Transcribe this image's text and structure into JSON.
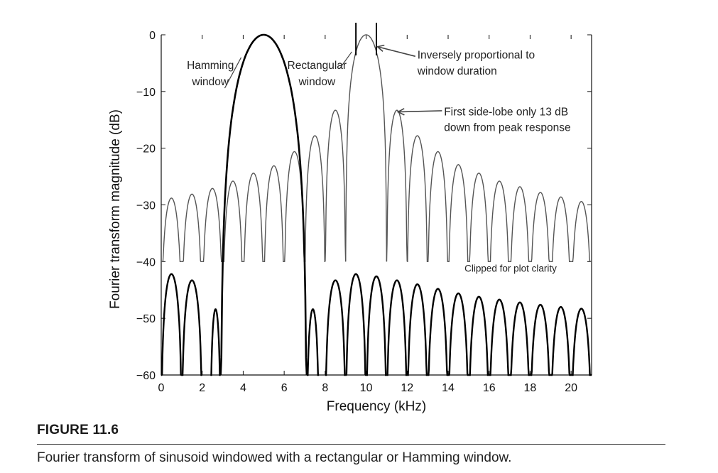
{
  "chart_data": {
    "type": "line",
    "title": "",
    "xlabel": "Frequency (kHz)",
    "ylabel": "Fourier transform magnitude (dB)",
    "xlim": [
      0,
      21
    ],
    "ylim": [
      -60,
      0
    ],
    "xticks": [
      "0",
      "2",
      "4",
      "6",
      "8",
      "10",
      "12",
      "14",
      "16",
      "18",
      "20"
    ],
    "yticks": [
      "0",
      "−10",
      "−20",
      "−30",
      "−40",
      "−50",
      "−60"
    ],
    "grid": false,
    "series": [
      {
        "style": "thick black line",
        "main_lobe": {
          "center_khz": 5,
          "peak_db": 0,
          "null_left_khz": 2.9,
          "null_right_khz": 7.1
        },
        "sidelobes_left": [
          {
            "center_khz": 0.5,
            "peak_db": -42.2
          },
          {
            "center_khz": 1.5,
            "peak_db": -43.3
          },
          {
            "center_khz": 2.65,
            "peak_db": -48.4
          }
        ],
        "sidelobes_right": [
          {
            "center_khz": 7.4,
            "peak_db": -48.4
          },
          {
            "center_khz": 8.5,
            "peak_db": -43.3
          },
          {
            "center_khz": 9.5,
            "peak_db": -42.2
          },
          {
            "center_khz": 10.5,
            "peak_db": -42.6
          },
          {
            "center_khz": 11.5,
            "peak_db": -43.3
          },
          {
            "center_khz": 12.5,
            "peak_db": -44.0
          },
          {
            "center_khz": 13.5,
            "peak_db": -44.8
          },
          {
            "center_khz": 14.5,
            "peak_db": -45.6
          },
          {
            "center_khz": 15.5,
            "peak_db": -46.2
          },
          {
            "center_khz": 16.5,
            "peak_db": -46.7
          },
          {
            "center_khz": 17.5,
            "peak_db": -47.2
          },
          {
            "center_khz": 18.5,
            "peak_db": -47.6
          },
          {
            "center_khz": 19.5,
            "peak_db": -48.0
          },
          {
            "center_khz": 20.5,
            "peak_db": -48.3
          }
        ]
      },
      {
        "style": "thin gray line",
        "clip_db": -40,
        "main_lobe": {
          "center_khz": 10,
          "peak_db": 0,
          "null_left_khz": 9,
          "null_right_khz": 11
        },
        "sidelobes": [
          {
            "center_khz": 0.5,
            "peak_db": -28.8
          },
          {
            "center_khz": 1.5,
            "peak_db": -28.1
          },
          {
            "center_khz": 2.5,
            "peak_db": -27.1
          },
          {
            "center_khz": 3.5,
            "peak_db": -25.8
          },
          {
            "center_khz": 4.5,
            "peak_db": -24.4
          },
          {
            "center_khz": 5.5,
            "peak_db": -23.1
          },
          {
            "center_khz": 6.5,
            "peak_db": -20.6
          },
          {
            "center_khz": 7.5,
            "peak_db": -17.8
          },
          {
            "center_khz": 8.5,
            "peak_db": -13.3
          },
          {
            "center_khz": 11.5,
            "peak_db": -13.3
          },
          {
            "center_khz": 12.5,
            "peak_db": -17.8
          },
          {
            "center_khz": 13.5,
            "peak_db": -20.6
          },
          {
            "center_khz": 14.5,
            "peak_db": -22.9
          },
          {
            "center_khz": 15.5,
            "peak_db": -24.4
          },
          {
            "center_khz": 16.5,
            "peak_db": -25.8
          },
          {
            "center_khz": 17.5,
            "peak_db": -26.8
          },
          {
            "center_khz": 18.5,
            "peak_db": -27.8
          },
          {
            "center_khz": 19.5,
            "peak_db": -28.6
          },
          {
            "center_khz": 20.5,
            "peak_db": -29.4
          }
        ]
      }
    ],
    "annotations": {
      "hamming_label": [
        "Hamming",
        "window"
      ],
      "rectangular_label": [
        "Rectangular",
        "window"
      ],
      "duration_note": [
        "Inversely proportional to",
        "window duration"
      ],
      "sidelobe_note": [
        "First side-lobe only 13 dB",
        "down from peak response"
      ],
      "clip_note": "Clipped for plot clarity"
    }
  },
  "figure": {
    "label": "FIGURE 11.6",
    "caption": "Fourier transform of sinusoid windowed with a rectangular or Hamming window."
  }
}
